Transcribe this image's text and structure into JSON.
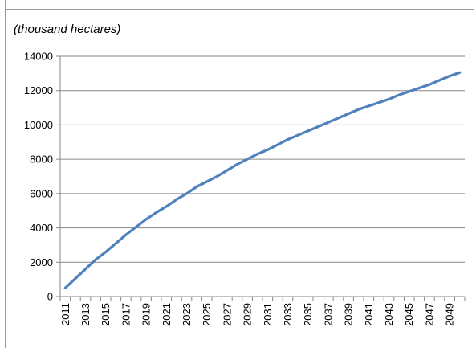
{
  "chart_data": {
    "type": "line",
    "title": "",
    "unit_label": "(thousand hectares)",
    "xlabel": "",
    "ylabel": "",
    "ylim": [
      0,
      14000
    ],
    "yticks": [
      0,
      2000,
      4000,
      6000,
      8000,
      10000,
      12000,
      14000
    ],
    "xticks": [
      "2011",
      "2013",
      "2015",
      "2017",
      "2019",
      "2021",
      "2023",
      "2025",
      "2027",
      "2029",
      "2031",
      "2033",
      "2035",
      "2037",
      "2039",
      "2041",
      "2043",
      "2045",
      "2047",
      "2049"
    ],
    "grid": true,
    "legend": "none",
    "series": [
      {
        "color": "#4f81bd",
        "x": [
          2011,
          2012,
          2013,
          2014,
          2015,
          2016,
          2017,
          2018,
          2019,
          2020,
          2021,
          2022,
          2023,
          2024,
          2025,
          2026,
          2027,
          2028,
          2029,
          2030,
          2031,
          2032,
          2033,
          2034,
          2035,
          2036,
          2037,
          2038,
          2039,
          2040,
          2041,
          2042,
          2043,
          2044,
          2045,
          2046,
          2047,
          2048,
          2049,
          2050
        ],
        "values": [
          500,
          1050,
          1600,
          2150,
          2600,
          3100,
          3600,
          4050,
          4500,
          4900,
          5250,
          5650,
          6000,
          6400,
          6700,
          7000,
          7350,
          7700,
          8000,
          8300,
          8550,
          8850,
          9150,
          9400,
          9650,
          9900,
          10150,
          10400,
          10650,
          10900,
          11100,
          11300,
          11500,
          11750,
          11950,
          12150,
          12350,
          12600,
          12850,
          13050
        ]
      }
    ]
  }
}
